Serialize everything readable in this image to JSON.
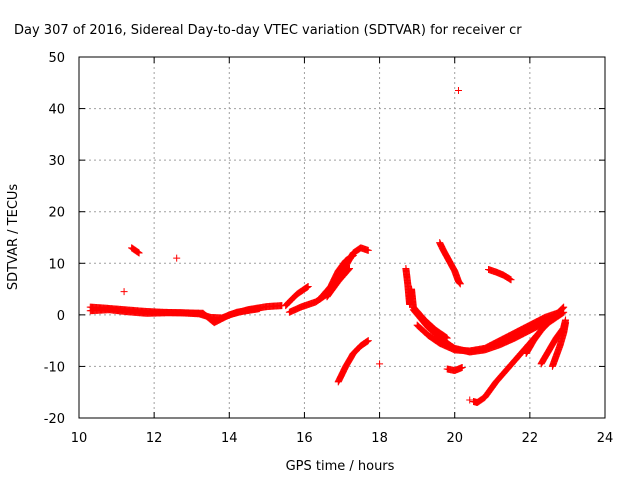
{
  "chart_data": {
    "type": "scatter",
    "title": "Day 307 of 2016, Sidereal Day-to-day VTEC variation (SDTVAR) for receiver cr",
    "xlabel": "GPS time / hours",
    "ylabel": "SDTVAR / TECUs",
    "xlim": [
      10,
      24
    ],
    "ylim": [
      -20,
      50
    ],
    "x_ticks": [
      10,
      12,
      14,
      16,
      18,
      20,
      22,
      24
    ],
    "y_ticks": [
      -20,
      -10,
      0,
      10,
      20,
      30,
      40,
      50
    ],
    "x_tick_labels": [
      "10",
      "12",
      "14",
      "16",
      "18",
      "20",
      "22",
      "24"
    ],
    "y_tick_labels": [
      "-20",
      "-10",
      "0",
      "10",
      "20",
      "30",
      "40",
      "50"
    ],
    "grid": true,
    "marker": "+",
    "color": "#ff0000",
    "series": [
      {
        "segments": [
          [
            [
              10.3,
              0.8
            ],
            [
              10.8,
              1.0
            ],
            [
              11.3,
              0.6
            ],
            [
              11.8,
              0.3
            ],
            [
              12.3,
              0.4
            ],
            [
              12.8,
              0.4
            ],
            [
              13.3,
              0.3
            ],
            [
              13.6,
              -1.5
            ],
            [
              14.0,
              0.0
            ],
            [
              14.5,
              1.0
            ],
            [
              15.0,
              1.6
            ],
            [
              15.4,
              1.8
            ]
          ],
          [
            [
              10.3,
              1.5
            ],
            [
              10.7,
              1.3
            ],
            [
              11.2,
              1.0
            ],
            [
              11.7,
              0.7
            ],
            [
              12.2,
              0.5
            ],
            [
              12.7,
              0.4
            ],
            [
              13.2,
              0.2
            ],
            [
              13.5,
              -0.5
            ],
            [
              13.8,
              -0.6
            ],
            [
              14.2,
              0.5
            ],
            [
              14.8,
              1.2
            ]
          ],
          [
            [
              11.4,
              13.0
            ],
            [
              11.6,
              12.0
            ]
          ],
          [
            [
              15.5,
              1.8
            ],
            [
              15.8,
              4.0
            ],
            [
              16.1,
              5.5
            ]
          ],
          [
            [
              15.6,
              0.5
            ],
            [
              15.9,
              1.5
            ],
            [
              16.3,
              2.5
            ],
            [
              16.6,
              4.0
            ],
            [
              16.9,
              7.0
            ],
            [
              17.1,
              9.5
            ],
            [
              17.3,
              12.0
            ],
            [
              17.5,
              13.0
            ],
            [
              17.7,
              12.5
            ]
          ],
          [
            [
              16.4,
              3.0
            ],
            [
              16.7,
              5.5
            ],
            [
              16.9,
              8.5
            ],
            [
              17.1,
              10.5
            ],
            [
              17.3,
              11.5
            ]
          ],
          [
            [
              16.6,
              3.5
            ],
            [
              16.9,
              6.5
            ],
            [
              17.2,
              9.0
            ]
          ],
          [
            [
              16.9,
              -13.0
            ],
            [
              17.1,
              -10.0
            ],
            [
              17.3,
              -7.5
            ],
            [
              17.5,
              -6.0
            ],
            [
              17.7,
              -5.0
            ]
          ],
          [
            [
              18.7,
              9.0
            ],
            [
              18.75,
              6.0
            ],
            [
              18.8,
              2.0
            ],
            [
              18.85,
              5.0
            ],
            [
              18.9,
              1.5
            ],
            [
              19.2,
              -1.0
            ],
            [
              19.5,
              -3.0
            ],
            [
              19.8,
              -4.5
            ]
          ],
          [
            [
              18.9,
              1.0
            ],
            [
              19.3,
              -2.5
            ],
            [
              19.7,
              -5.0
            ],
            [
              20.0,
              -6.5
            ],
            [
              20.4,
              -7.2
            ],
            [
              20.8,
              -6.8
            ],
            [
              21.2,
              -5.8
            ],
            [
              21.6,
              -4.5
            ],
            [
              22.0,
              -3.0
            ],
            [
              22.4,
              -1.5
            ],
            [
              22.7,
              0.0
            ],
            [
              22.9,
              1.5
            ]
          ],
          [
            [
              19.0,
              -2.0
            ],
            [
              19.3,
              -4.0
            ],
            [
              19.6,
              -5.5
            ],
            [
              20.0,
              -6.8
            ],
            [
              20.4,
              -7.0
            ],
            [
              20.8,
              -6.5
            ],
            [
              21.2,
              -5.0
            ],
            [
              21.6,
              -3.5
            ],
            [
              22.0,
              -2.0
            ],
            [
              22.4,
              -0.5
            ],
            [
              22.8,
              0.5
            ]
          ],
          [
            [
              19.6,
              14.0
            ],
            [
              19.7,
              12.5
            ],
            [
              19.85,
              10.5
            ],
            [
              20.0,
              8.5
            ],
            [
              20.1,
              6.5
            ],
            [
              20.15,
              6.0
            ]
          ],
          [
            [
              19.8,
              -10.5
            ],
            [
              20.0,
              -10.8
            ],
            [
              20.2,
              -10.2
            ]
          ],
          [
            [
              20.9,
              8.8
            ],
            [
              21.1,
              8.3
            ],
            [
              21.3,
              7.7
            ],
            [
              21.5,
              6.8
            ]
          ],
          [
            [
              20.5,
              -16.8
            ],
            [
              20.6,
              -17.0
            ],
            [
              20.8,
              -16.0
            ],
            [
              21.1,
              -13.0
            ],
            [
              21.4,
              -10.5
            ],
            [
              21.7,
              -8.0
            ],
            [
              22.0,
              -5.5
            ],
            [
              22.3,
              -3.0
            ],
            [
              22.5,
              -1.0
            ],
            [
              22.7,
              0.0
            ]
          ],
          [
            [
              21.9,
              -7.5
            ],
            [
              22.1,
              -5.0
            ],
            [
              22.3,
              -3.0
            ],
            [
              22.5,
              -1.5
            ],
            [
              22.8,
              0.0
            ],
            [
              22.9,
              0.5
            ]
          ],
          [
            [
              22.3,
              -9.5
            ],
            [
              22.5,
              -7.0
            ],
            [
              22.7,
              -4.5
            ],
            [
              22.9,
              -2.5
            ],
            [
              22.95,
              -1.0
            ]
          ],
          [
            [
              22.6,
              -10.0
            ],
            [
              22.8,
              -6.0
            ],
            [
              22.9,
              -3.5
            ],
            [
              22.95,
              -1.5
            ]
          ]
        ],
        "points": [
          [
            11.2,
            4.5
          ],
          [
            12.6,
            11.0
          ],
          [
            18.0,
            -9.5
          ],
          [
            20.1,
            43.5
          ],
          [
            20.4,
            -16.5
          ]
        ]
      }
    ]
  }
}
